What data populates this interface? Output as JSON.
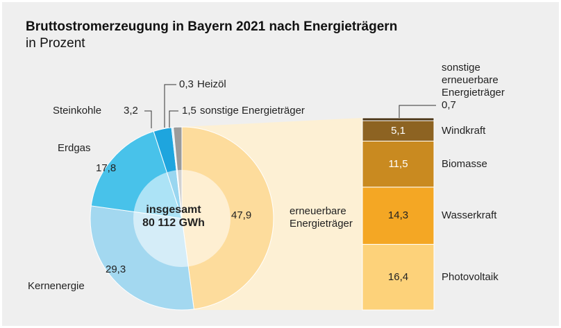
{
  "chart_data": [
    {
      "type": "pie",
      "title": "Bruttostromerzeugung in Bayern 2021 nach Energieträgern",
      "subtitle": "in Prozent",
      "center_label": "insgesamt",
      "total_label": "80 112 GWh",
      "categories": [
        "erneuerbare Energieträger",
        "Kernenergie",
        "Erdgas",
        "Steinkohle",
        "Heizöl",
        "sonstige Energieträger"
      ],
      "values": [
        47.9,
        29.3,
        17.8,
        3.2,
        0.3,
        1.5
      ],
      "value_labels": [
        "47,9",
        "29,3",
        "17,8",
        "3,2",
        "0,3",
        "1,5"
      ],
      "colors": [
        "#fddc9c",
        "#a3d8f0",
        "#48c2ea",
        "#1ea5de",
        "#d3ecf7",
        "#9b9b9b"
      ]
    },
    {
      "type": "stacked_bar",
      "categories": [
        "Photovoltaik",
        "Wasserkraft",
        "Biomasse",
        "Windkraft",
        "sonstige erneuerbare Energieträger"
      ],
      "values": [
        16.4,
        14.3,
        11.5,
        5.1,
        0.7
      ],
      "value_labels": [
        "16,4",
        "14,3",
        "11,5",
        "5,1",
        "0,7"
      ],
      "colors": [
        "#fdd27a",
        "#f4a724",
        "#c98a20",
        "#8d6322",
        "#4b3617"
      ]
    }
  ]
}
